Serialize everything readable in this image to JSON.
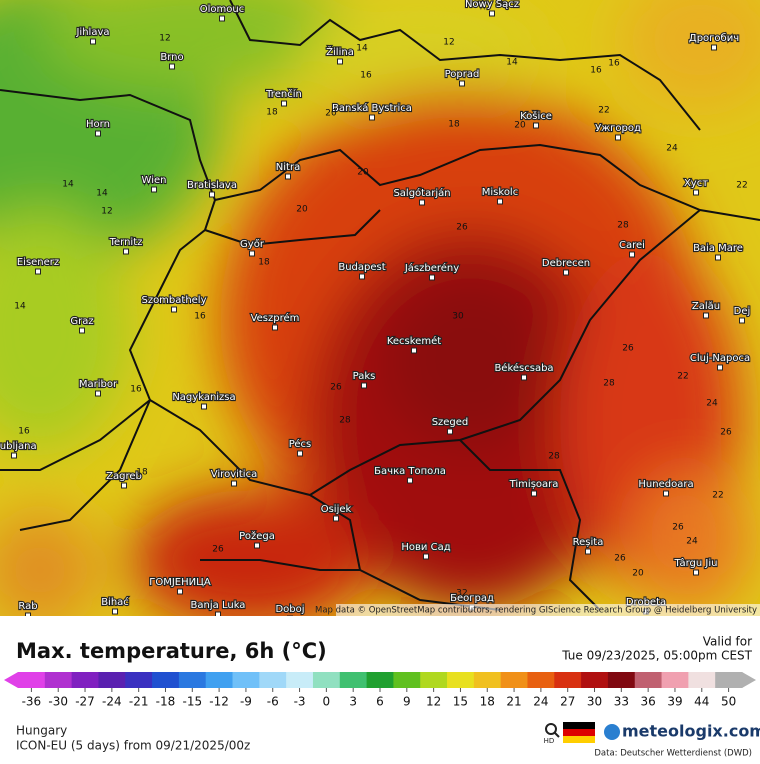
{
  "title": "Max. temperature, 6h (°C)",
  "valid_label": "Valid for",
  "valid_time": "Tue 09/23/2025, 05:00pm CEST",
  "region": "Hungary",
  "model": "ICON-EU (5 days) from 09/21/2025/00z",
  "brand": "meteologix.com",
  "hd": "HD",
  "source": "Data: Deutscher Wetterdienst (DWD)",
  "attribution": "Map data © OpenStreetMap contributors, rendering GIScience Research Group @ Heidelberg University",
  "cities": [
    "Olomouc",
    "Nowy Sącz",
    "Jihlava",
    "Brno",
    "Žilina",
    "Poprad",
    "Дрогобич",
    "Trenčín",
    "Banská Bystrica",
    "Košice",
    "Ужгород",
    "Horn",
    "Nitra",
    "Wien",
    "Bratislava",
    "Salgótarján",
    "Miskolc",
    "Хуст",
    "Ternitz",
    "Győr",
    "Carei",
    "Baia Mare",
    "Eisenerz",
    "Budapest",
    "Jászberény",
    "Debrecen",
    "Szombathely",
    "Zalău",
    "Graz",
    "Veszprém",
    "Dej",
    "Kecskemét",
    "Cluj-Napoca",
    "Békéscsaba",
    "Maribor",
    "Paks",
    "Nagykanizsa",
    "Szeged",
    "Pécs",
    "Ljubljana",
    "Zagreb",
    "Virovitica",
    "Бачка Топола",
    "Timișoara",
    "Hunedoara",
    "Osijek",
    "Požega",
    "Нови Сад",
    "Reșita",
    "Târgu Jiu",
    "ГОМЈЕНИЦА",
    "Banja Luka",
    "Doboj",
    "Bihać",
    "Београд",
    "Drobeta",
    "Rab"
  ],
  "isotherm_labels": [
    12,
    14,
    12,
    14,
    16,
    16,
    16,
    18,
    20,
    18,
    20,
    22,
    24,
    22,
    14,
    14,
    12,
    20,
    20,
    26,
    28,
    18,
    16,
    30,
    14,
    26,
    22,
    28,
    26,
    16,
    28,
    24,
    26,
    16,
    28,
    18,
    22,
    26,
    24,
    26,
    26,
    20,
    32
  ],
  "legend": {
    "ticks": [
      -36,
      -30,
      -27,
      -24,
      -21,
      -18,
      -15,
      -12,
      -9,
      -6,
      -3,
      0,
      3,
      6,
      9,
      12,
      15,
      18,
      21,
      24,
      27,
      30,
      33,
      36,
      39,
      44,
      50
    ],
    "colors": [
      "#e040e8",
      "#b030d0",
      "#8020c0",
      "#5a20b0",
      "#3a30c0",
      "#2050d0",
      "#2a78e0",
      "#40a0f0",
      "#70c0f8",
      "#a0d8f8",
      "#c8ecf8",
      "#90e0c0",
      "#40c070",
      "#20a030",
      "#60c020",
      "#b0d820",
      "#e8e020",
      "#f0c020",
      "#f09018",
      "#e86010",
      "#d83010",
      "#b01010",
      "#800810",
      "#c06070",
      "#f0a0b0",
      "#f0e0e0",
      "#b0b0b0"
    ]
  }
}
